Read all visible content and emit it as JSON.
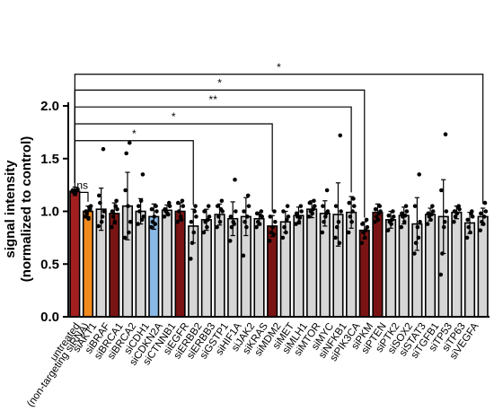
{
  "chart_data": {
    "type": "bar",
    "ylabel": "signal intensity",
    "ylabel2": "(normalized to control)",
    "ylim": [
      0,
      2.0
    ],
    "yticks": [
      "0.0",
      "0.5",
      "1.0",
      "1.5",
      "2.0"
    ],
    "categories": [
      "untreated",
      "(non-targeting siRNA)",
      "siAKT1",
      "siBRAF",
      "siBRCA1",
      "siBRCA2",
      "siCDH1",
      "siCDKN2A",
      "siCTNNB1",
      "siEGFR",
      "siERBB2",
      "siERBB3",
      "siGSTP1",
      "siHIF1A",
      "siJAK2",
      "siKRAS",
      "siMDM2",
      "siMET",
      "siMLH1",
      "siMTOR",
      "siMYC",
      "siNFKB1",
      "siPIK3CA",
      "siPKM",
      "siPTEN",
      "siPTK2",
      "siSOX2",
      "siSTAT3",
      "siTGFB1",
      "siTP53",
      "siTP63",
      "siVEGFA"
    ],
    "values": [
      1.19,
      1.0,
      1.02,
      0.98,
      1.05,
      1.0,
      0.95,
      1.01,
      1.0,
      0.86,
      0.92,
      0.97,
      0.93,
      0.95,
      0.93,
      0.86,
      0.9,
      0.96,
      1.02,
      0.98,
      0.97,
      0.99,
      0.82,
      0.99,
      0.92,
      0.96,
      0.88,
      0.97,
      0.95,
      0.99,
      0.89,
      0.95
    ],
    "errors": [
      0.04,
      0.05,
      0.2,
      0.1,
      0.32,
      0.12,
      0.12,
      0.05,
      0.08,
      0.16,
      0.1,
      0.1,
      0.16,
      0.18,
      0.06,
      0.1,
      0.1,
      0.08,
      0.08,
      0.12,
      0.3,
      0.15,
      0.08,
      0.08,
      0.08,
      0.08,
      0.25,
      0.06,
      0.35,
      0.06,
      0.1,
      0.08
    ],
    "colors": [
      "#a31f1f",
      "#f08a1c",
      "#d6d6d6",
      "#7a1414",
      "#d6d6d6",
      "#d6d6d6",
      "#8ab8e6",
      "#d6d6d6",
      "#7a1414",
      "#d6d6d6",
      "#d6d6d6",
      "#d6d6d6",
      "#d6d6d6",
      "#d6d6d6",
      "#d6d6d6",
      "#7a1414",
      "#d6d6d6",
      "#d6d6d6",
      "#d6d6d6",
      "#d6d6d6",
      "#d6d6d6",
      "#d6d6d6",
      "#7a1414",
      "#7a1414",
      "#d6d6d6",
      "#d6d6d6",
      "#d6d6d6",
      "#d6d6d6",
      "#d6d6d6",
      "#d6d6d6",
      "#d6d6d6",
      "#d6d6d6"
    ],
    "points": [
      [
        1.19,
        1.2,
        1.18,
        1.21,
        1.17,
        1.2,
        1.19
      ],
      [
        0.95,
        1.02,
        0.98,
        1.05,
        0.93,
        1.0,
        1.04
      ],
      [
        0.86,
        1.59,
        1.08,
        1.0,
        0.9,
        1.15,
        0.95
      ],
      [
        0.85,
        1.1,
        0.95,
        1.02,
        0.9,
        1.0,
        1.05
      ],
      [
        0.75,
        1.65,
        1.55,
        0.9,
        1.05,
        1.2,
        0.8
      ],
      [
        0.88,
        1.35,
        1.0,
        0.95,
        1.1,
        1.05,
        0.92
      ],
      [
        0.85,
        1.05,
        0.9,
        1.0,
        0.95,
        1.02,
        0.88
      ],
      [
        0.95,
        1.08,
        1.0,
        1.05,
        0.98,
        1.02,
        0.97
      ],
      [
        0.9,
        1.1,
        1.0,
        1.05,
        0.95,
        1.08,
        0.92
      ],
      [
        0.55,
        1.05,
        0.7,
        0.95,
        0.8,
        0.9,
        1.0
      ],
      [
        0.8,
        1.05,
        0.9,
        0.95,
        0.85,
        1.0,
        0.92
      ],
      [
        0.85,
        1.1,
        0.95,
        1.0,
        0.9,
        1.05,
        1.02
      ],
      [
        0.72,
        1.3,
        0.85,
        1.0,
        0.9,
        0.95,
        0.88
      ],
      [
        0.58,
        1.15,
        0.9,
        1.05,
        0.85,
        1.0,
        0.95
      ],
      [
        0.85,
        1.0,
        0.9,
        0.95,
        0.88,
        0.98,
        0.96
      ],
      [
        0.72,
        1.0,
        0.8,
        0.9,
        0.85,
        0.95,
        0.78
      ],
      [
        0.75,
        1.05,
        0.85,
        0.95,
        0.8,
        1.0,
        0.92
      ],
      [
        0.88,
        1.05,
        0.95,
        1.0,
        0.9,
        0.98,
        0.94
      ],
      [
        0.95,
        1.1,
        1.0,
        1.05,
        0.98,
        1.08,
        1.02
      ],
      [
        0.8,
        1.2,
        0.9,
        1.0,
        0.95,
        1.05,
        0.98
      ],
      [
        0.75,
        1.72,
        0.85,
        1.0,
        0.9,
        1.05,
        0.7
      ],
      [
        0.8,
        1.12,
        0.95,
        1.05,
        0.9,
        1.08,
        1.0
      ],
      [
        0.7,
        0.92,
        0.8,
        0.85,
        0.75,
        0.88,
        0.82
      ],
      [
        0.9,
        1.05,
        0.95,
        1.0,
        0.92,
        1.02,
        0.98
      ],
      [
        0.82,
        1.0,
        0.9,
        0.95,
        0.88,
        0.96,
        0.92
      ],
      [
        0.85,
        1.05,
        0.95,
        1.0,
        0.9,
        0.98,
        0.96
      ],
      [
        0.6,
        1.35,
        0.7,
        0.9,
        0.85,
        1.05,
        0.75
      ],
      [
        0.88,
        1.05,
        0.95,
        1.0,
        0.92,
        0.98,
        0.97
      ],
      [
        0.4,
        1.73,
        0.6,
        1.0,
        0.85,
        1.2,
        0.9
      ],
      [
        0.9,
        1.05,
        0.95,
        1.02,
        0.98,
        1.0,
        1.04
      ],
      [
        0.75,
        1.0,
        0.85,
        0.95,
        0.8,
        0.92,
        0.98
      ],
      [
        0.82,
        1.08,
        0.9,
        1.0,
        0.88,
        0.98,
        0.95
      ]
    ],
    "significance": [
      {
        "label": "ns",
        "from": 0,
        "to": 1,
        "level": 0
      },
      {
        "label": "*",
        "from": 0,
        "to": 9,
        "level": 1
      },
      {
        "label": "*",
        "from": 0,
        "to": 15,
        "level": 2
      },
      {
        "label": "**",
        "from": 0,
        "to": 21,
        "level": 3
      },
      {
        "label": "*",
        "from": 0,
        "to": 22,
        "level": 4
      },
      {
        "label": "*",
        "from": 0,
        "to": 31,
        "level": 5
      }
    ]
  }
}
